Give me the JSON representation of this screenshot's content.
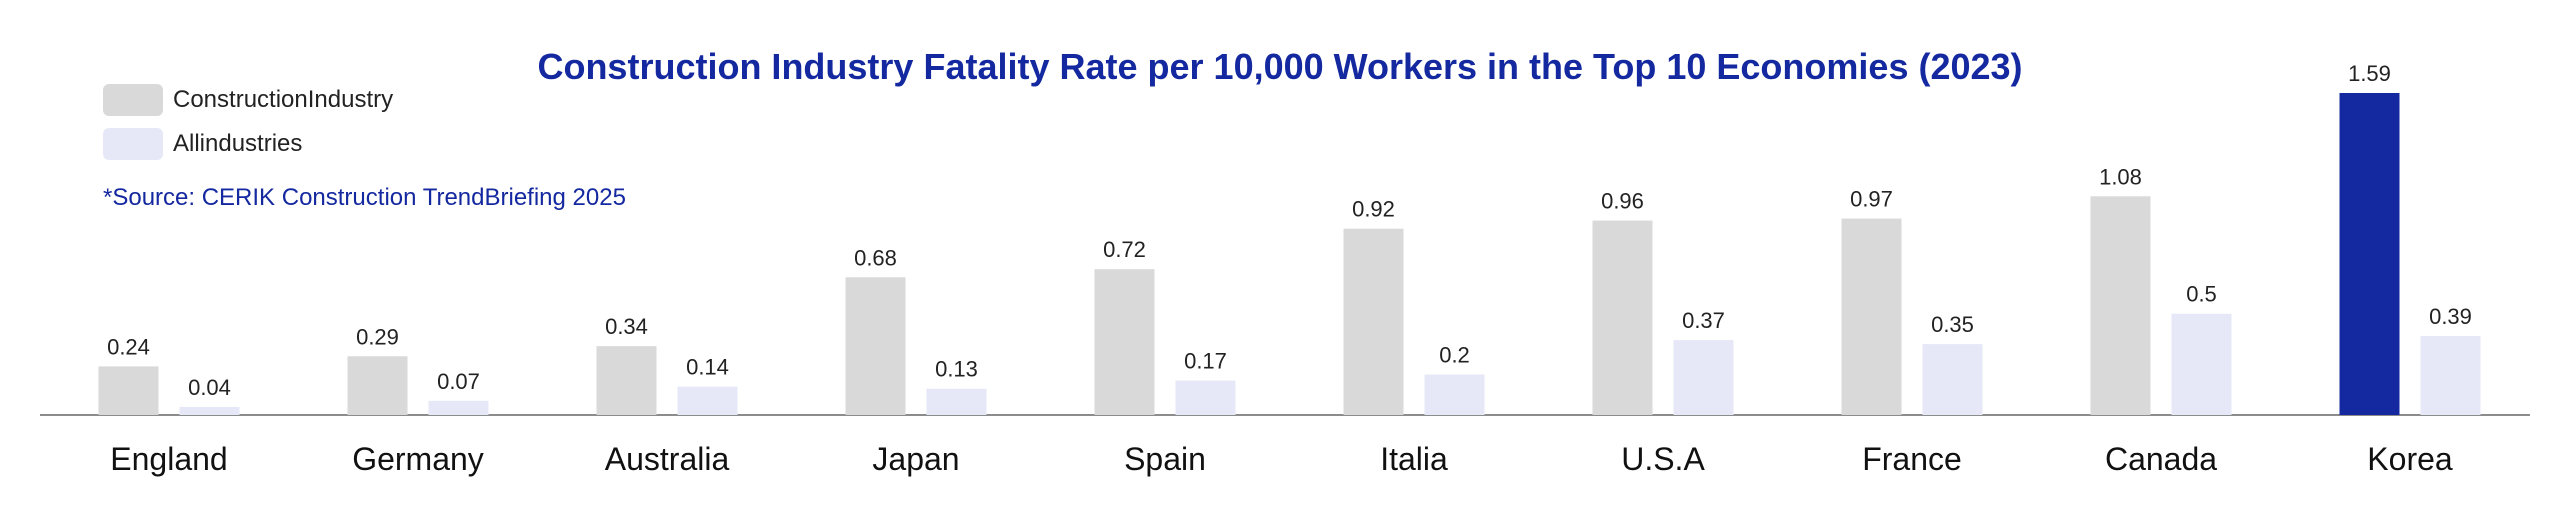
{
  "chart_data": {
    "type": "bar",
    "title": "Construction Industry Fatality Rate per 10,000 Workers in the Top 10 Economies (2023)",
    "source": "*Source: CERIK Construction TrendBriefing 2025",
    "categories": [
      "England",
      "Germany",
      "Australia",
      "Japan",
      "Spain",
      "Italia",
      "U.S.A",
      "France",
      "Canada",
      "Korea"
    ],
    "series": [
      {
        "name": "ConstructionIndustry",
        "values": [
          0.24,
          0.29,
          0.34,
          0.68,
          0.72,
          0.92,
          0.96,
          0.97,
          1.08,
          1.59
        ]
      },
      {
        "name": "Allindustries",
        "values": [
          0.04,
          0.07,
          0.14,
          0.13,
          0.17,
          0.2,
          0.37,
          0.35,
          0.5,
          0.39
        ]
      }
    ],
    "value_labels": [
      [
        "0.24",
        "0.29",
        "0.34",
        "0.68",
        "0.72",
        "0.92",
        "0.96",
        "0.97",
        "1.08",
        "1.59"
      ],
      [
        "0.04",
        "0.07",
        "0.14",
        "0.13",
        "0.17",
        "0.2",
        "0.37",
        "0.35",
        "0.5",
        "0.39"
      ]
    ],
    "ylim": [
      0,
      1.59
    ],
    "legend_position": "top-left",
    "grid": false,
    "colors": {
      "construction": "#D9D9D9",
      "all_industries": "#E6E8F8",
      "highlight": "#1428A0",
      "title": "#1428A0",
      "axis": "#8C8C8C"
    },
    "highlight_category": "Korea"
  }
}
